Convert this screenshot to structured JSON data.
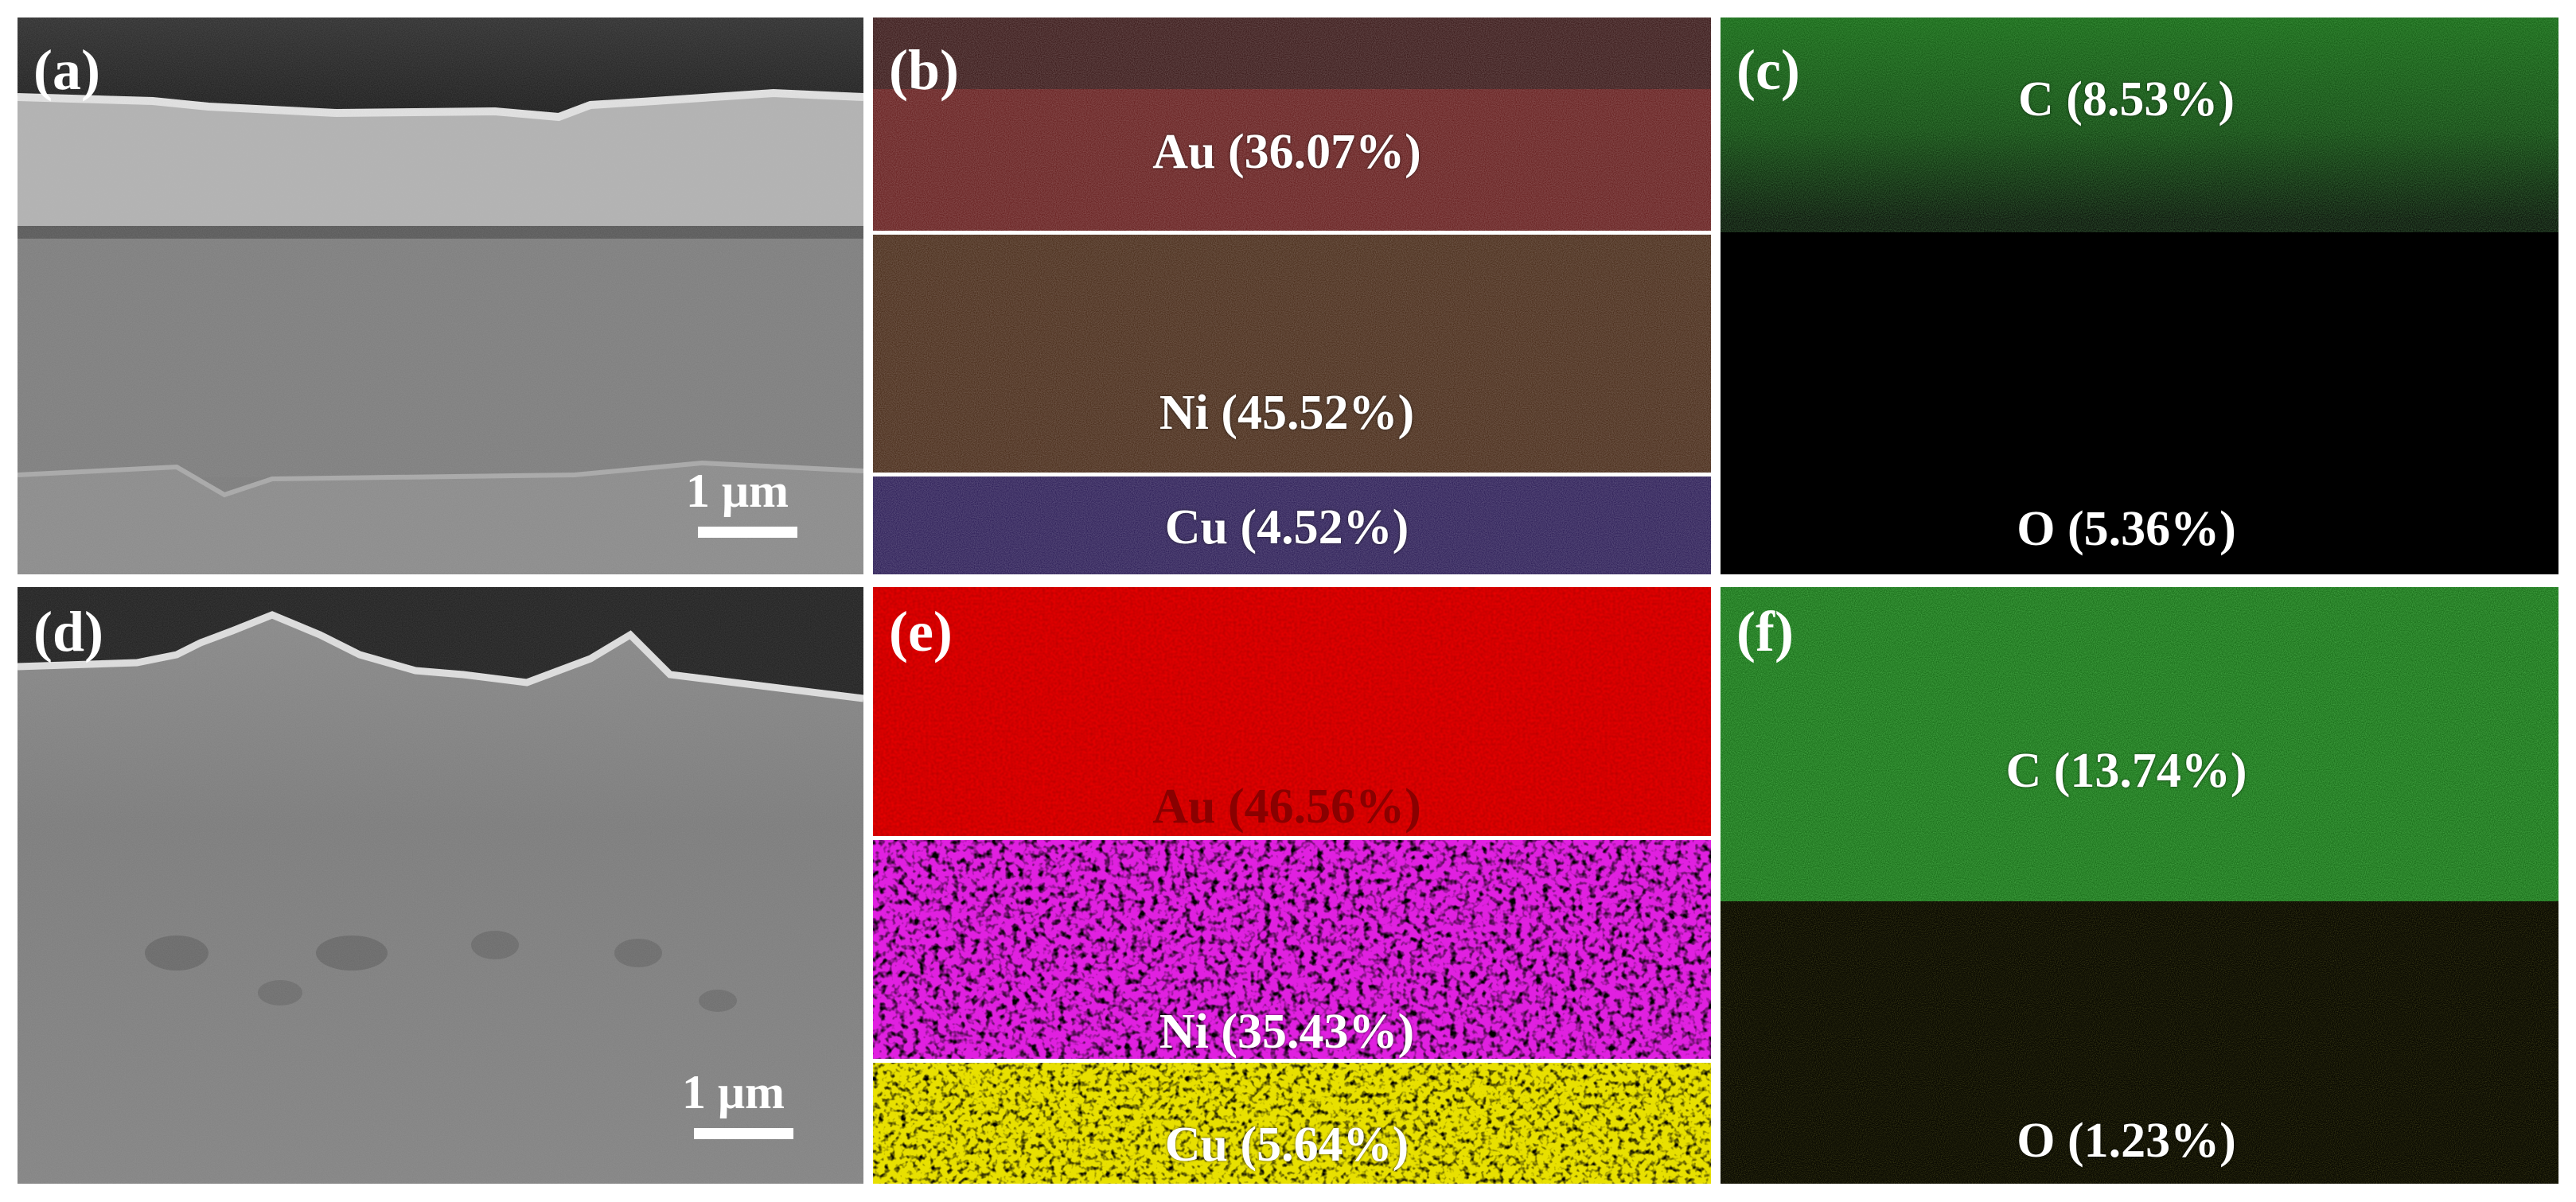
{
  "panels": {
    "a": {
      "label": "(a)",
      "scale": "1 μm"
    },
    "b": {
      "label": "(b)",
      "au": "Au (36.07%)",
      "ni": "Ni (45.52%)",
      "cu": "Cu (4.52%)"
    },
    "c": {
      "label": "(c)",
      "c": "C (8.53%)",
      "o": "O (5.36%)"
    },
    "d": {
      "label": "(d)",
      "scale": "1 μm"
    },
    "e": {
      "label": "(e)",
      "au": "Au (46.56%)",
      "ni": "Ni (35.43%)",
      "cu": "Cu (5.64%)"
    },
    "f": {
      "label": "(f)",
      "c": "C (13.74%)",
      "o": "O (1.23%)"
    }
  },
  "colors": {
    "au_b": "#5a0c0c",
    "ni_b": "#3a1a06",
    "cu_b": "#1c0c4a",
    "c_green": "#1fa01f",
    "o_yellow": "#b8b820",
    "au_e": "#f20000",
    "ni_e": "#e020e0",
    "cu_e": "#e8e000"
  }
}
